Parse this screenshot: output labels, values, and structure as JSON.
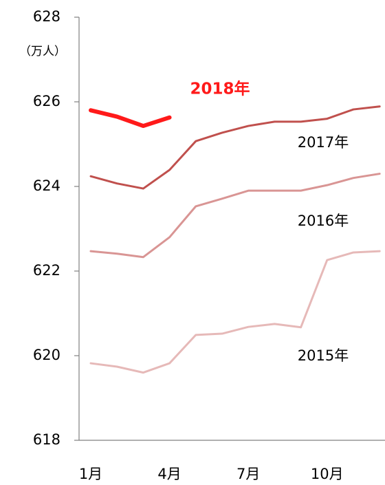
{
  "chart_data": {
    "type": "line",
    "y_label": "（万人）",
    "categories": [
      "1月",
      null,
      null,
      "4月",
      null,
      null,
      "7月",
      null,
      null,
      "10月",
      null,
      null
    ],
    "series": [
      {
        "name": "2015年",
        "color": "#e6b9b8",
        "values": [
          619.82,
          619.74,
          619.6,
          619.82,
          620.49,
          620.52,
          620.68,
          620.75,
          620.67,
          622.26,
          622.44,
          622.47
        ]
      },
      {
        "name": "2016年",
        "color": "#d99594",
        "values": [
          622.47,
          622.41,
          622.33,
          622.8,
          623.53,
          623.71,
          623.9,
          623.9,
          623.9,
          624.03,
          624.2,
          624.3
        ]
      },
      {
        "name": "2017年",
        "color": "#c0504d",
        "values": [
          624.24,
          624.07,
          623.95,
          624.39,
          625.07,
          625.27,
          625.43,
          625.53,
          625.53,
          625.6,
          625.82,
          625.89
        ]
      },
      {
        "name": "2018年",
        "color": "#ff1a1a",
        "values": [
          625.8,
          625.65,
          625.43,
          625.63,
          null,
          null,
          null,
          null,
          null,
          null,
          null,
          null
        ]
      }
    ],
    "ylim": [
      618,
      628
    ],
    "yticks": [
      618,
      620,
      622,
      624,
      626,
      628
    ]
  }
}
